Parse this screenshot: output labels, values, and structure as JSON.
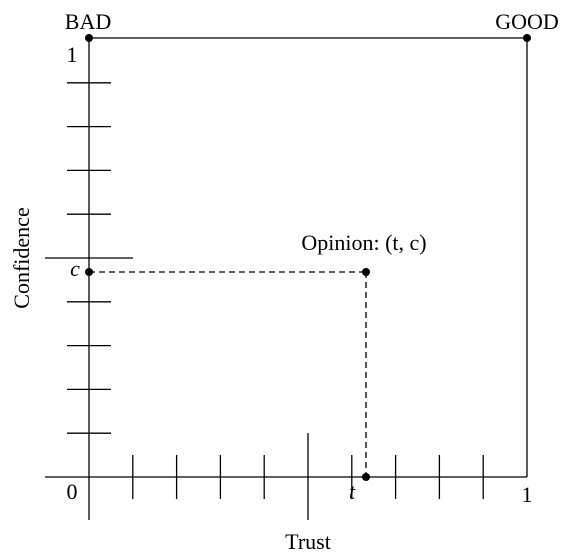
{
  "labels": {
    "bad": "BAD",
    "good": "GOOD",
    "y_one": "1",
    "origin": "0",
    "x_one": "1",
    "c": "c",
    "t": "t",
    "opinion": "Opinion: (t, c)",
    "y_axis": "Confidence",
    "x_axis": "Trust"
  }
}
